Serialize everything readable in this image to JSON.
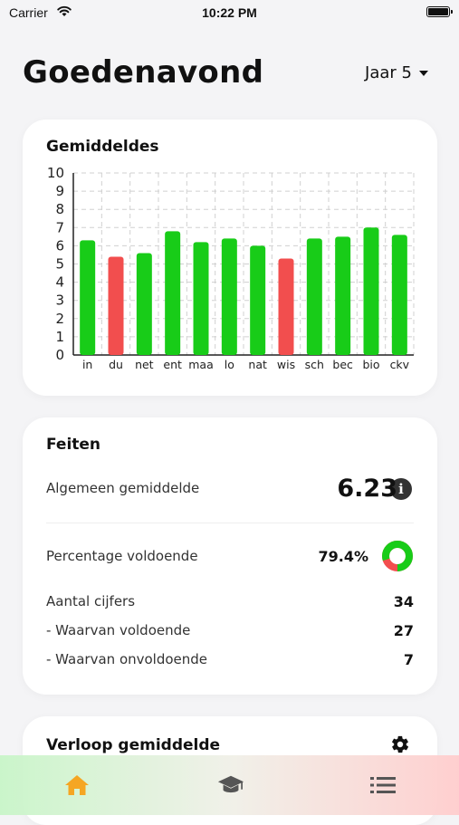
{
  "status_bar": {
    "carrier": "Carrier",
    "time": "10:22 PM"
  },
  "header": {
    "greeting": "Goedenavond",
    "year_selector": "Jaar 5"
  },
  "chart_card": {
    "title": "Gemiddeldes"
  },
  "chart_data": {
    "type": "bar",
    "categories": [
      "in",
      "du",
      "net",
      "ent",
      "maa",
      "lo",
      "nat",
      "wis",
      "sch",
      "bec",
      "bio",
      "ckv"
    ],
    "values": [
      6.3,
      5.4,
      5.6,
      6.8,
      6.2,
      6.4,
      6.0,
      5.3,
      6.4,
      6.5,
      7.0,
      6.6
    ],
    "ylim": [
      0,
      10
    ],
    "yticks": [
      "0",
      "1",
      "2",
      "3",
      "4",
      "5",
      "6",
      "7",
      "8",
      "9",
      "10"
    ],
    "grid": true,
    "pass_threshold": 5.5,
    "colors": {
      "pass": "#18cc18",
      "fail": "#f24e4e"
    }
  },
  "facts": {
    "title": "Feiten",
    "overall_average_label": "Algemeen gemiddelde",
    "overall_average_value": "6.23",
    "percentage_label": "Percentage voldoende",
    "percentage_value": "79.4%",
    "percentage_fraction": 0.794,
    "count_label": "Aantal cijfers",
    "count_value": "34",
    "pass_label": "- Waarvan voldoende",
    "pass_value": "27",
    "fail_label": "- Waarvan onvoldoende",
    "fail_value": "7",
    "donut_colors": {
      "pass": "#18cc18",
      "fail": "#f24e4e"
    }
  },
  "trend_card": {
    "title": "Verloop gemiddelde"
  },
  "tabbar": {
    "active_color": "#f5a623",
    "inactive_color": "#555555",
    "tabs": [
      {
        "icon": "home-icon",
        "active": true
      },
      {
        "icon": "graduation-cap-icon",
        "active": false
      },
      {
        "icon": "list-icon",
        "active": false
      }
    ]
  }
}
